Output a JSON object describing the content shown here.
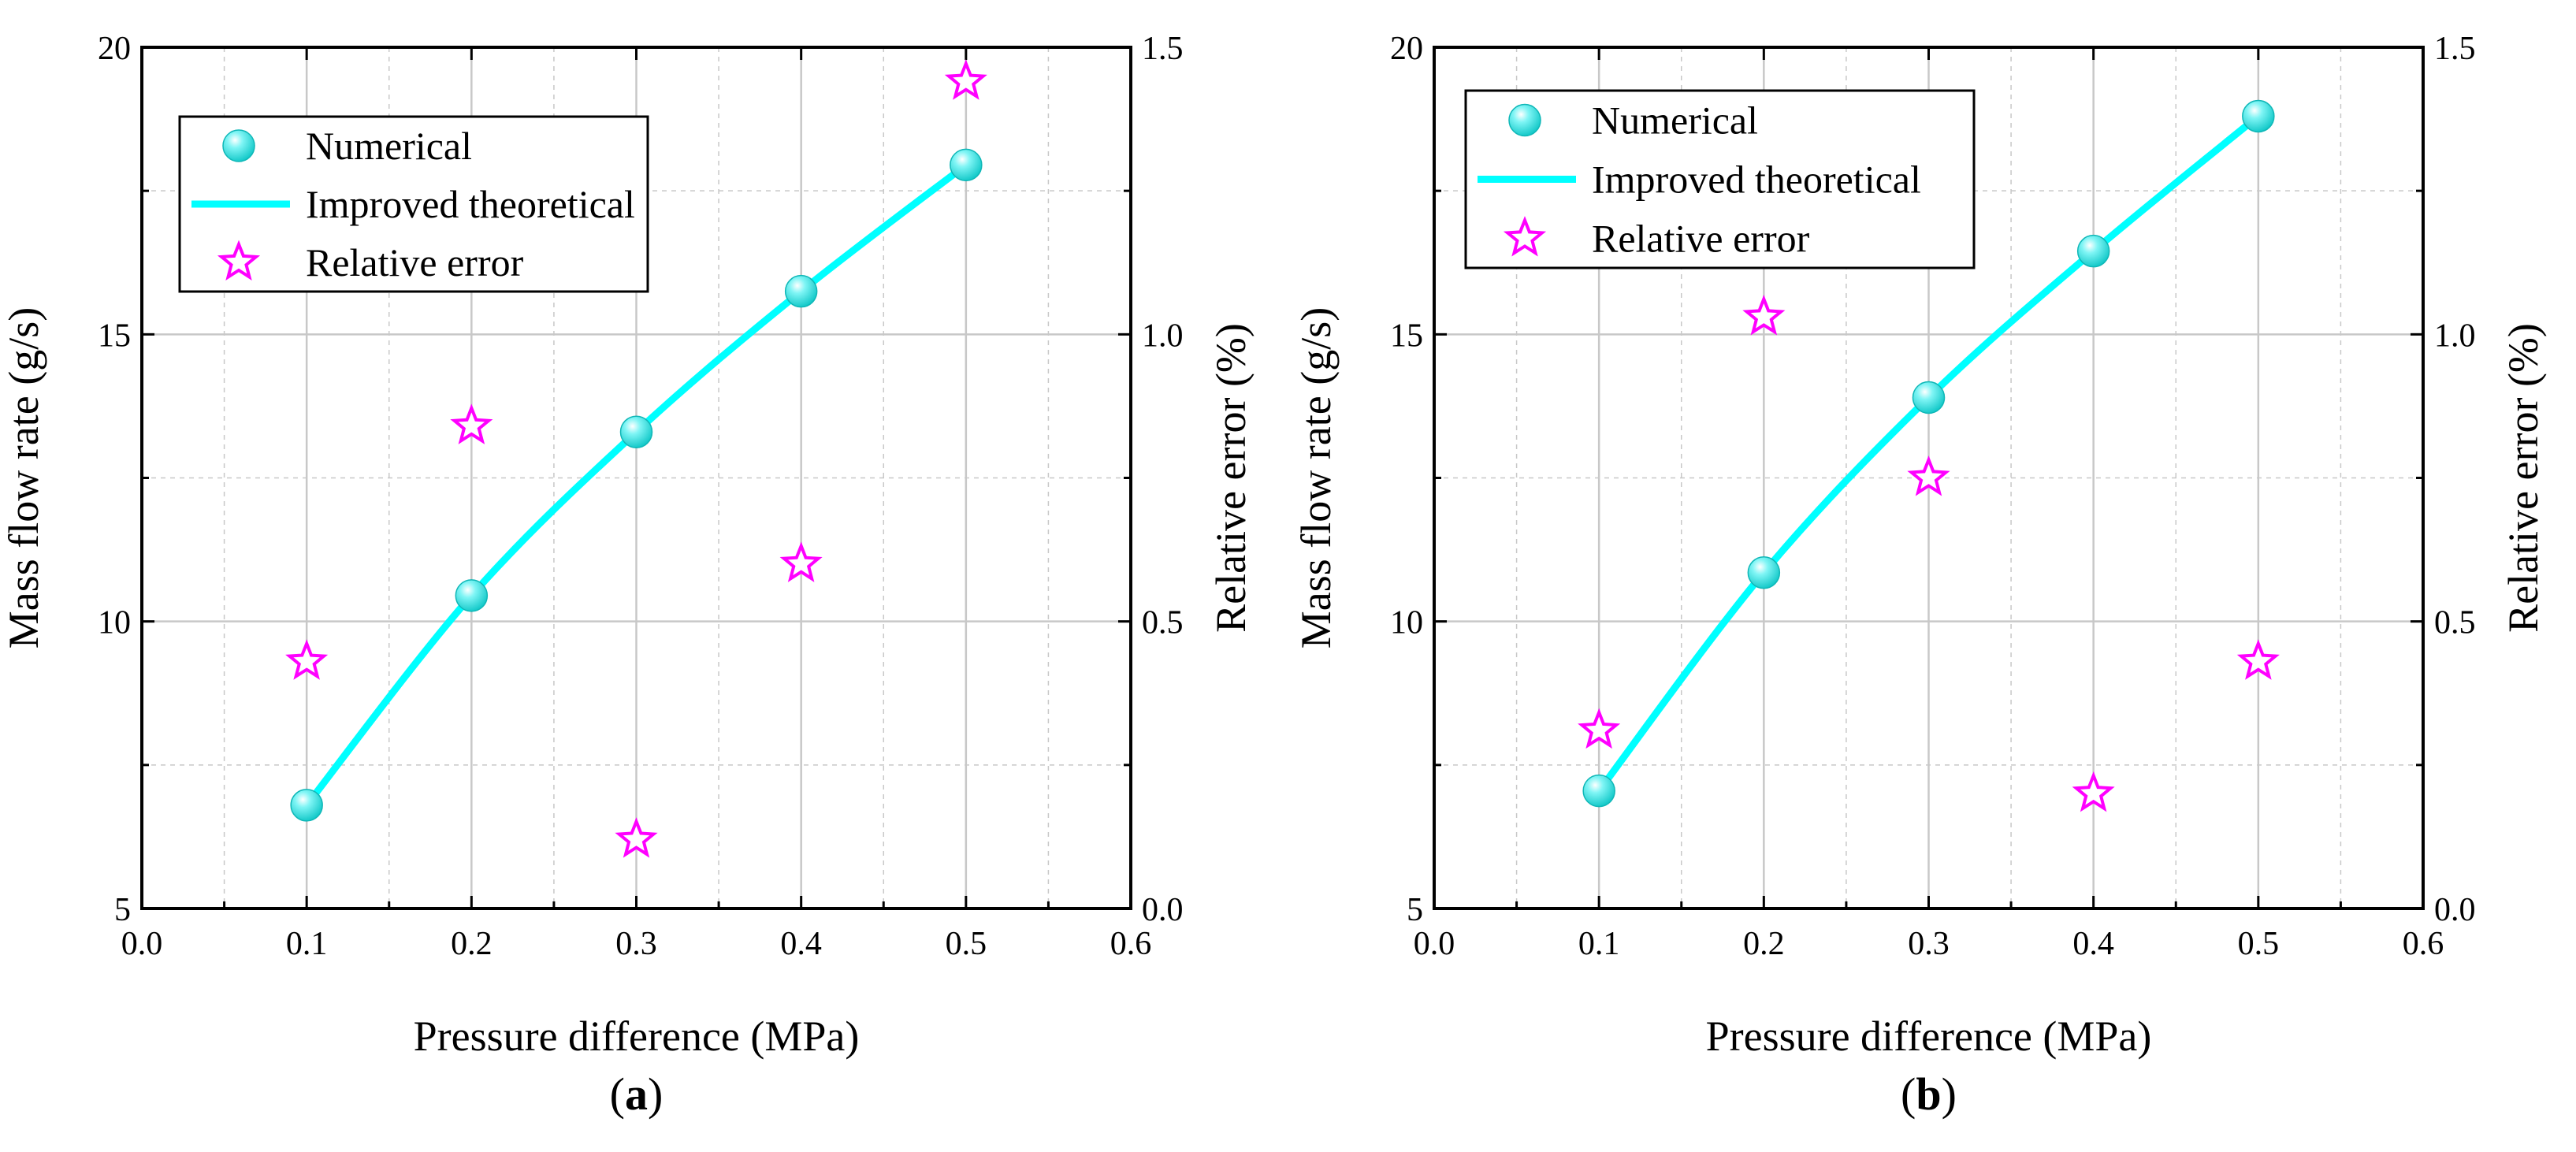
{
  "colors": {
    "numerical": "#1fe6e6",
    "theoretical": "#00ffff",
    "relative_error": "#ff00ff",
    "grid": "#c8c8c8",
    "axis": "#000000"
  },
  "chart_data": [
    {
      "type": "line",
      "panel_label": "(a)",
      "panel_label_parts": {
        "open": "(",
        "letter": "a",
        "close": ")"
      },
      "xlabel": "Pressure difference (MPa)",
      "ylabel": "Mass flow rate (g/s)",
      "y2label": "Relative error (%)",
      "xlim": [
        0.0,
        0.6
      ],
      "ylim": [
        5,
        20
      ],
      "y2lim": [
        0.0,
        1.5
      ],
      "x_ticks": [
        "0.0",
        "0.1",
        "0.2",
        "0.3",
        "0.4",
        "0.5",
        "0.6"
      ],
      "y_ticks": [
        "5",
        "10",
        "15",
        "20"
      ],
      "y2_ticks": [
        "0.0",
        "0.5",
        "1.0",
        "1.5"
      ],
      "grid": true,
      "legend_placement": "top-left",
      "legend": [
        "Numerical",
        "Improved theoretical",
        "Relative error"
      ],
      "x": [
        0.1,
        0.2,
        0.3,
        0.4,
        0.5
      ],
      "series": [
        {
          "name": "Numerical",
          "axis": "left",
          "style": "sphere",
          "values": [
            6.8,
            10.45,
            13.3,
            15.75,
            17.95
          ]
        },
        {
          "name": "Improved theoretical",
          "axis": "left",
          "style": "line",
          "values": [
            6.8,
            10.45,
            13.3,
            15.75,
            17.95
          ]
        },
        {
          "name": "Relative error",
          "axis": "right",
          "style": "star",
          "values": [
            0.43,
            0.84,
            0.12,
            0.6,
            1.44
          ]
        }
      ]
    },
    {
      "type": "line",
      "panel_label": "(b)",
      "panel_label_parts": {
        "open": "(",
        "letter": "b",
        "close": ")"
      },
      "xlabel": "Pressure difference (MPa)",
      "ylabel": "Mass flow rate (g/s)",
      "y2label": "Relative error (%)",
      "xlim": [
        0.0,
        0.6
      ],
      "ylim": [
        5,
        20
      ],
      "y2lim": [
        0.0,
        1.5
      ],
      "x_ticks": [
        "0.0",
        "0.1",
        "0.2",
        "0.3",
        "0.4",
        "0.5",
        "0.6"
      ],
      "y_ticks": [
        "5",
        "10",
        "15",
        "20"
      ],
      "y2_ticks": [
        "0.0",
        "0.5",
        "1.0",
        "1.5"
      ],
      "grid": true,
      "legend_placement": "top-left",
      "legend": [
        "Numerical",
        "Improved theoretical",
        "Relative error"
      ],
      "x": [
        0.1,
        0.2,
        0.3,
        0.4,
        0.5
      ],
      "series": [
        {
          "name": "Numerical",
          "axis": "left",
          "style": "sphere",
          "values": [
            7.05,
            10.85,
            13.9,
            16.45,
            18.8
          ]
        },
        {
          "name": "Improved theoretical",
          "axis": "left",
          "style": "line",
          "values": [
            7.05,
            10.85,
            13.9,
            16.45,
            18.8
          ]
        },
        {
          "name": "Relative error",
          "axis": "right",
          "style": "star",
          "values": [
            0.31,
            1.03,
            0.75,
            0.2,
            0.43
          ]
        }
      ]
    }
  ]
}
